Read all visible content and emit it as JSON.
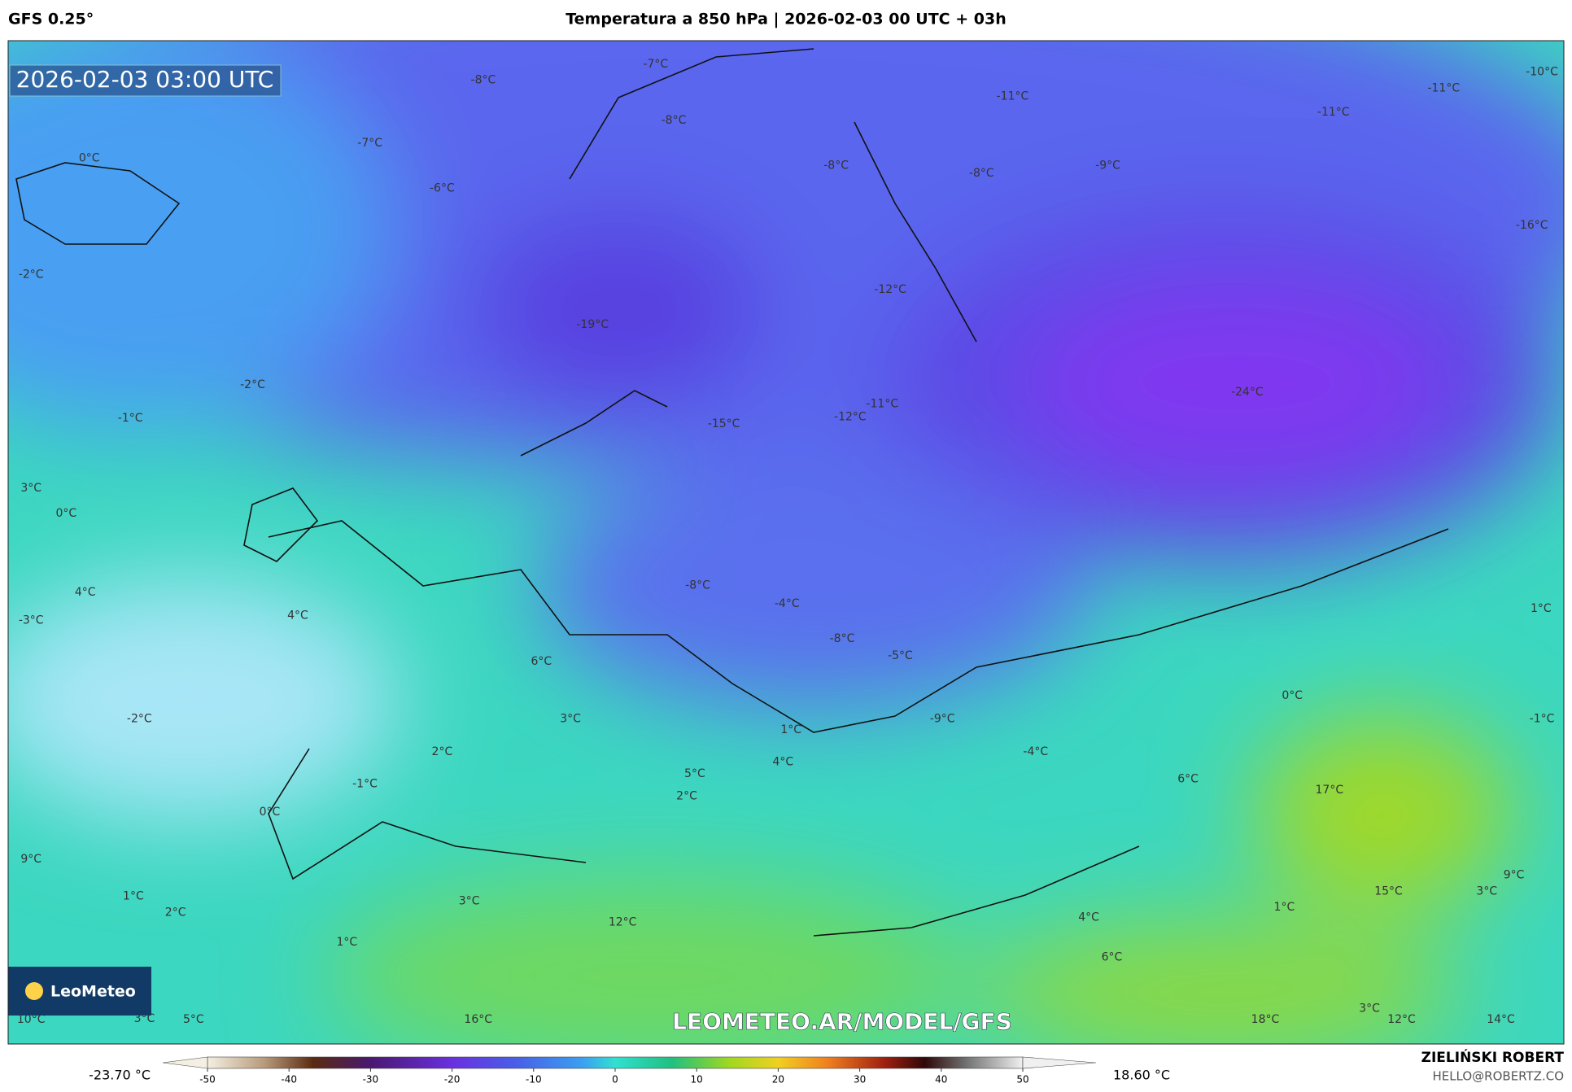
{
  "header": {
    "model": "GFS 0.25°",
    "title": "Temperatura a 850 hPa | 2026-02-03 00 UTC + 03h"
  },
  "map": {
    "timestamp": "2026-02-03 03:00 UTC",
    "logo": "LeoMeteo",
    "watermark": "LEOMETEO.AR/MODEL/GFS",
    "labels": [
      "-8°C",
      "-7°C",
      "-7°C",
      "0°C",
      "-6°C",
      "-8°C",
      "-8°C",
      "-8°C",
      "-11°C",
      "-9°C",
      "-11°C",
      "-11°C",
      "-10°C",
      "-16°C",
      "-2°C",
      "-19°C",
      "-12°C",
      "-2°C",
      "-1°C",
      "-15°C",
      "-12°C",
      "-11°C",
      "-24°C",
      "3°C",
      "0°C",
      "4°C",
      "-3°C",
      "4°C",
      "-8°C",
      "-4°C",
      "-8°C",
      "-5°C",
      "6°C",
      "1°C",
      "-2°C",
      "3°C",
      "1°C",
      "-9°C",
      "0°C",
      "-1°C",
      "2°C",
      "-4°C",
      "5°C",
      "4°C",
      "6°C",
      "17°C",
      "-1°C",
      "0°C",
      "2°C",
      "9°C",
      "1°C",
      "2°C",
      "3°C",
      "12°C",
      "4°C",
      "1°C",
      "15°C",
      "3°C",
      "9°C",
      "1°C",
      "6°C",
      "10°C",
      "3°C",
      "5°C",
      "16°C",
      "18°C",
      "3°C",
      "12°C",
      "14°C"
    ]
  },
  "colorbar": {
    "min_label": "-23.70 °C",
    "max_label": "18.60 °C",
    "range": [
      -50,
      50
    ],
    "ticks": [
      -50,
      -40,
      -30,
      -20,
      -10,
      0,
      10,
      20,
      30,
      40,
      50
    ]
  },
  "credits": {
    "author": "ZIELIŃSKI ROBERT",
    "contact": "HELLO@ROBERTZ.CO"
  }
}
